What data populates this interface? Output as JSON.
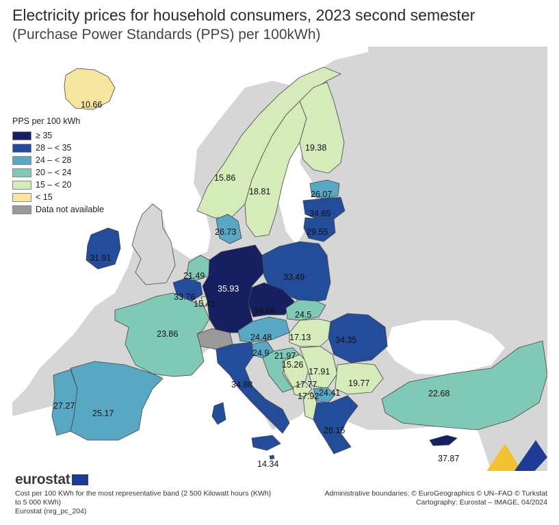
{
  "title": {
    "line1": "Electricity prices for household consumers, 2023 second semester",
    "line2": "(Purchase Power Standards (PPS) per 100kWh)"
  },
  "legend": {
    "title": "PPS per 100 kWh",
    "items": [
      {
        "label": "≥ 35",
        "color": "#162060"
      },
      {
        "label": "28 – < 35",
        "color": "#234d9b"
      },
      {
        "label": "24 – < 28",
        "color": "#58a8c4"
      },
      {
        "label": "20 – < 24",
        "color": "#7fc9b6"
      },
      {
        "label": "15 – < 20",
        "color": "#d5ebb9"
      },
      {
        "label": "< 15",
        "color": "#f7e6a0"
      },
      {
        "label": "Data not available",
        "color": "#9a9a9a"
      }
    ]
  },
  "colors": {
    "background_land": "#d6d6d6",
    "sea": "#ffffff",
    "border": "#444444"
  },
  "map": {
    "values": {
      "iceland": "10.66",
      "ireland": "31.91",
      "france": "23.86",
      "spain": "25.17",
      "portugal": "27.27",
      "belgium": "33.76",
      "netherlands": "21.49",
      "luxembourg": "15.43",
      "germany": "35.93",
      "denmark": "26.73",
      "norway": "15.86",
      "sweden": "18.81",
      "finland": "19.38",
      "estonia": "26.07",
      "latvia": "34.65",
      "lithuania": "29.55",
      "poland": "33.49",
      "czechia": "38.68",
      "slovakia": "24.5",
      "austria": "24.48",
      "hungary": "17.13",
      "slovenia": "24.9",
      "croatia": "21.97",
      "bosnia": "15.26",
      "serbia": "17.91",
      "montenegro": "17.77",
      "albania": "17.92",
      "north_macedonia": "24.41",
      "bulgaria": "19.77",
      "romania": "34.35",
      "italy": "34.88",
      "malta": "14.34",
      "greece": "28.15",
      "turkey": "22.68",
      "cyprus": "37.87"
    }
  },
  "footer": {
    "logo": "eurostat",
    "note": "Cost per 100 KWh for the most representative band (2 500 Kilowatt hours (KWh) to 5 000 KWh)",
    "source": "Eurostat (nrg_pc_204)",
    "admin": "Administrative boundaries: © EuroGeographics © UN–FAO © Turkstat",
    "carto": "Cartography: Eurostat – IMAGE, 04/2024"
  }
}
